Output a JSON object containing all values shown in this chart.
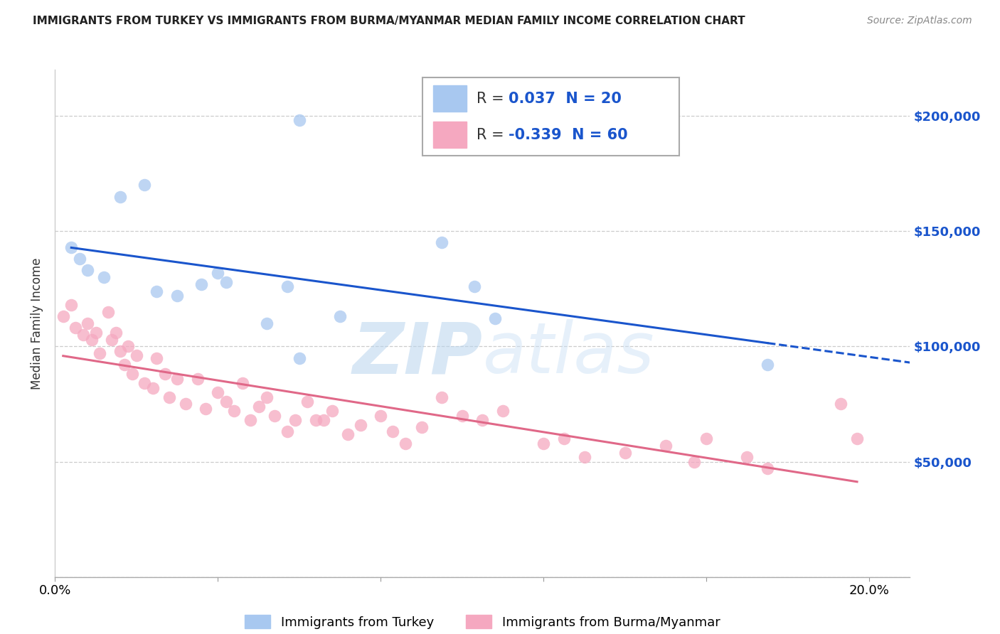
{
  "title": "IMMIGRANTS FROM TURKEY VS IMMIGRANTS FROM BURMA/MYANMAR MEDIAN FAMILY INCOME CORRELATION CHART",
  "source": "Source: ZipAtlas.com",
  "ylabel": "Median Family Income",
  "turkey_R": 0.037,
  "turkey_N": 20,
  "burma_R": -0.339,
  "burma_N": 60,
  "turkey_color": "#a8c8f0",
  "burma_color": "#f5a8c0",
  "turkey_line_color": "#1a55cc",
  "burma_line_color": "#e06888",
  "label_color_dark": "#333333",
  "label_color_blue": "#1a55cc",
  "watermark_color": "#cce0f8",
  "xlim": [
    0.0,
    0.21
  ],
  "ylim": [
    0,
    220000
  ],
  "yticks": [
    0,
    50000,
    100000,
    150000,
    200000
  ],
  "ytick_labels": [
    "",
    "$50,000",
    "$100,000",
    "$150,000",
    "$200,000"
  ],
  "xticks": [
    0.0,
    0.04,
    0.08,
    0.12,
    0.16,
    0.2
  ],
  "xtick_labels": [
    "0.0%",
    "",
    "",
    "",
    "",
    "20.0%"
  ],
  "turkey_label": "Immigrants from Turkey",
  "burma_label": "Immigrants from Burma/Myanmar",
  "turkey_x": [
    0.004,
    0.006,
    0.008,
    0.012,
    0.016,
    0.022,
    0.025,
    0.03,
    0.036,
    0.04,
    0.042,
    0.052,
    0.057,
    0.06,
    0.07,
    0.095,
    0.103,
    0.108,
    0.175,
    0.06
  ],
  "turkey_y": [
    143000,
    138000,
    133000,
    130000,
    165000,
    170000,
    124000,
    122000,
    127000,
    132000,
    128000,
    110000,
    126000,
    95000,
    113000,
    145000,
    126000,
    112000,
    92000,
    198000
  ],
  "burma_x": [
    0.002,
    0.004,
    0.005,
    0.007,
    0.008,
    0.009,
    0.01,
    0.011,
    0.013,
    0.014,
    0.015,
    0.016,
    0.017,
    0.018,
    0.019,
    0.02,
    0.022,
    0.024,
    0.025,
    0.027,
    0.028,
    0.03,
    0.032,
    0.035,
    0.037,
    0.04,
    0.042,
    0.044,
    0.046,
    0.048,
    0.05,
    0.052,
    0.054,
    0.057,
    0.059,
    0.062,
    0.064,
    0.066,
    0.068,
    0.072,
    0.075,
    0.08,
    0.083,
    0.086,
    0.09,
    0.095,
    0.1,
    0.105,
    0.11,
    0.12,
    0.125,
    0.13,
    0.14,
    0.15,
    0.157,
    0.16,
    0.17,
    0.175,
    0.193,
    0.197
  ],
  "burma_y": [
    113000,
    118000,
    108000,
    105000,
    110000,
    103000,
    106000,
    97000,
    115000,
    103000,
    106000,
    98000,
    92000,
    100000,
    88000,
    96000,
    84000,
    82000,
    95000,
    88000,
    78000,
    86000,
    75000,
    86000,
    73000,
    80000,
    76000,
    72000,
    84000,
    68000,
    74000,
    78000,
    70000,
    63000,
    68000,
    76000,
    68000,
    68000,
    72000,
    62000,
    66000,
    70000,
    63000,
    58000,
    65000,
    78000,
    70000,
    68000,
    72000,
    58000,
    60000,
    52000,
    54000,
    57000,
    50000,
    60000,
    52000,
    47000,
    75000,
    60000
  ]
}
